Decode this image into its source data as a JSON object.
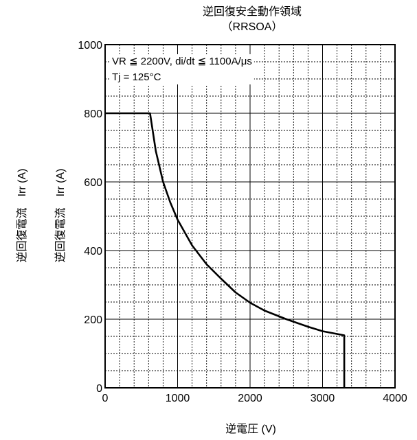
{
  "chart_data": {
    "type": "line",
    "title": "逆回復安全動作領域",
    "subtitle": "（RRSOA）",
    "xlabel": "逆電圧 (V)",
    "ylabel": "逆回復電流　Irr (A)",
    "xlim": [
      0,
      4000
    ],
    "ylim": [
      0,
      1000
    ],
    "x_ticks": [
      0,
      1000,
      2000,
      3000,
      4000
    ],
    "y_ticks": [
      0,
      200,
      400,
      600,
      800,
      1000
    ],
    "x_tick_labels": [
      "0",
      "1000",
      "2000",
      "3000",
      "4000"
    ],
    "y_tick_labels": [
      "0",
      "200",
      "400",
      "600",
      "800",
      "1000"
    ],
    "grid": true,
    "annotations": [
      "VR ≦ 2200V, di/dt ≦ 1100A/μs",
      "Tj = 125°C"
    ],
    "series": [
      {
        "x": [
          0,
          620,
          700,
          800,
          900,
          1000,
          1200,
          1400,
          1600,
          1800,
          2000,
          2200,
          2500,
          2800,
          3000,
          3300,
          3300
        ],
        "y": [
          800,
          800,
          690,
          600,
          540,
          490,
          415,
          360,
          318,
          278,
          248,
          225,
          200,
          178,
          165,
          153,
          0
        ]
      }
    ]
  }
}
